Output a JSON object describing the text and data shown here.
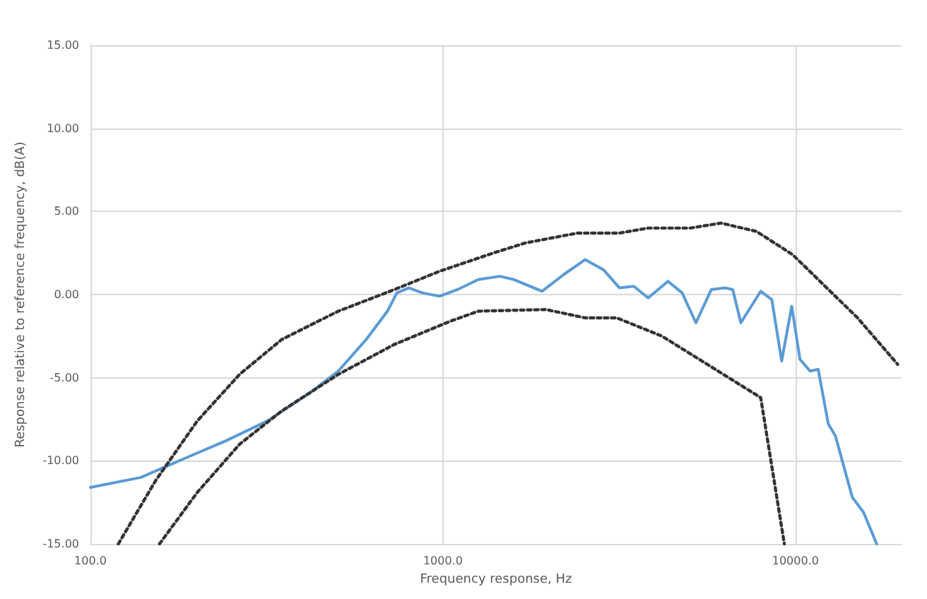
{
  "chart_data": {
    "type": "line",
    "xlabel": "Frequency response, Hz",
    "ylabel": "Response relative to reference frequency, dB(A)",
    "log": "x",
    "xlim": [
      100,
      20000
    ],
    "xticks": [
      {
        "value": 100,
        "label": "100.0"
      },
      {
        "value": 1000,
        "label": "1000.0"
      },
      {
        "value": 10000,
        "label": "10000.0"
      }
    ],
    "ylim": [
      -15,
      15
    ],
    "yticks": [
      {
        "value": -15,
        "label": "-15.00"
      },
      {
        "value": -10,
        "label": "-10.00"
      },
      {
        "value": -5,
        "label": "-5.00"
      },
      {
        "value": 0,
        "label": "0.00"
      },
      {
        "value": 5,
        "label": "5.00"
      },
      {
        "value": 10,
        "label": "10.00"
      },
      {
        "value": 15,
        "label": "15.00"
      }
    ],
    "grid": true,
    "marker": "none",
    "series": [
      {
        "color": "#5b9bd5",
        "line_style": "solid",
        "x": [
          100,
          139,
          183,
          242,
          318,
          420,
          505,
          606,
          696,
          740,
          800,
          875,
          978,
          1100,
          1260,
          1450,
          1590,
          1910,
          2200,
          2530,
          2850,
          3170,
          3480,
          3820,
          4350,
          4770,
          5220,
          5770,
          6330,
          6640,
          7000,
          7970,
          8570,
          9140,
          9760,
          10300,
          11000,
          11600,
          12400,
          12980,
          14500,
          15600,
          17000
        ],
        "values": [
          -11.6,
          -11.0,
          -9.9,
          -8.8,
          -7.6,
          -5.9,
          -4.6,
          -2.7,
          -1.0,
          0.1,
          0.4,
          0.1,
          -0.1,
          0.3,
          0.9,
          1.1,
          0.9,
          0.2,
          1.2,
          2.1,
          1.5,
          0.4,
          0.5,
          -0.2,
          0.8,
          0.1,
          -1.7,
          0.3,
          0.4,
          0.3,
          -1.7,
          0.2,
          -0.3,
          -4.0,
          -0.7,
          -3.9,
          -4.6,
          -4.5,
          -7.8,
          -8.5,
          -12.2,
          -13.1,
          -15.0
        ]
      },
      {
        "color": "#333333",
        "line_style": "dotted",
        "x": [
          120,
          153,
          201,
          265,
          349,
          505,
          728,
          978,
          1390,
          1710,
          2410,
          3170,
          3820,
          5030,
          6150,
          7750,
          9820,
          15000,
          19500
        ],
        "values": [
          -15.0,
          -11.2,
          -7.6,
          -4.8,
          -2.7,
          -1.0,
          0.3,
          1.4,
          2.5,
          3.1,
          3.7,
          3.7,
          4.0,
          4.0,
          4.3,
          3.8,
          2.4,
          -1.4,
          -4.2
        ]
      },
      {
        "color": "#333333",
        "line_style": "dotted",
        "x": [
          157,
          201,
          265,
          349,
          505,
          728,
          1050,
          1260,
          1960,
          2530,
          3110,
          4180,
          6030,
          7970,
          9300
        ],
        "values": [
          -15.0,
          -11.9,
          -9.0,
          -7.0,
          -4.8,
          -3.0,
          -1.6,
          -1.0,
          -0.9,
          -1.4,
          -1.4,
          -2.5,
          -4.6,
          -6.2,
          -15.0
        ]
      }
    ]
  }
}
